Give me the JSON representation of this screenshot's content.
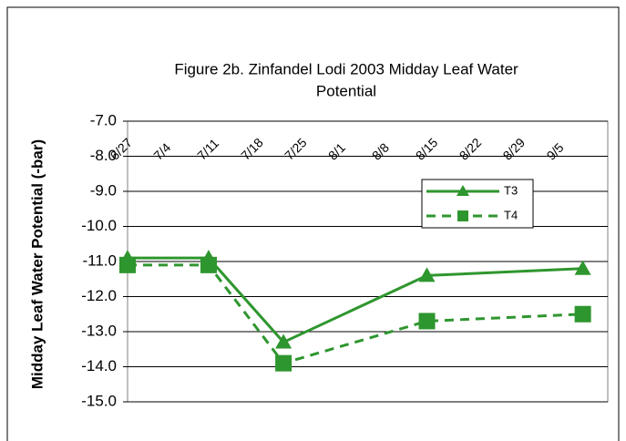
{
  "chart_data": {
    "type": "line",
    "title": [
      "Figure 2b. Zinfandel Lodi 2003 Midday Leaf Water",
      "Potential"
    ],
    "y_label": "Midday Leaf Water Potential (-bar)",
    "x": [
      "2003-06-27",
      "2003-07-10",
      "2003-07-22",
      "2003-08-14",
      "2003-09-08"
    ],
    "series": [
      {
        "name": "T3",
        "color": "#2e962e",
        "dash": false,
        "marker": "triangle",
        "values": [
          -10.9,
          -10.9,
          -13.3,
          -11.4,
          -11.2
        ]
      },
      {
        "name": "T4",
        "color": "#2e962e",
        "dash": true,
        "marker": "square",
        "values": [
          -11.1,
          -11.1,
          -13.9,
          -12.7,
          -12.5
        ]
      }
    ],
    "xlim": [
      "2003-06-27",
      "2003-09-12"
    ],
    "xticks": [
      {
        "value": "2003-06-27",
        "label": "6/27"
      },
      {
        "value": "2003-07-04",
        "label": "7/4"
      },
      {
        "value": "2003-07-11",
        "label": "7/11"
      },
      {
        "value": "2003-07-18",
        "label": "7/18"
      },
      {
        "value": "2003-07-25",
        "label": "7/25"
      },
      {
        "value": "2003-08-01",
        "label": "8/1"
      },
      {
        "value": "2003-08-08",
        "label": "8/8"
      },
      {
        "value": "2003-08-15",
        "label": "8/15"
      },
      {
        "value": "2003-08-22",
        "label": "8/22"
      },
      {
        "value": "2003-08-29",
        "label": "8/29"
      },
      {
        "value": "2003-09-05",
        "label": "9/5"
      }
    ],
    "ylim": [
      -15,
      -7
    ],
    "yticks": [
      {
        "value": -7,
        "label": "-7.0"
      },
      {
        "value": -8,
        "label": "-8.0"
      },
      {
        "value": -9,
        "label": "-9.0"
      },
      {
        "value": -10,
        "label": "-10.0"
      },
      {
        "value": -11,
        "label": "-11.0"
      },
      {
        "value": -12,
        "label": "-12.0"
      },
      {
        "value": -13,
        "label": "-13.0"
      },
      {
        "value": -14,
        "label": "-14.0"
      },
      {
        "value": -15,
        "label": "-15.0"
      }
    ],
    "grid": true,
    "legend": "upper-right"
  }
}
